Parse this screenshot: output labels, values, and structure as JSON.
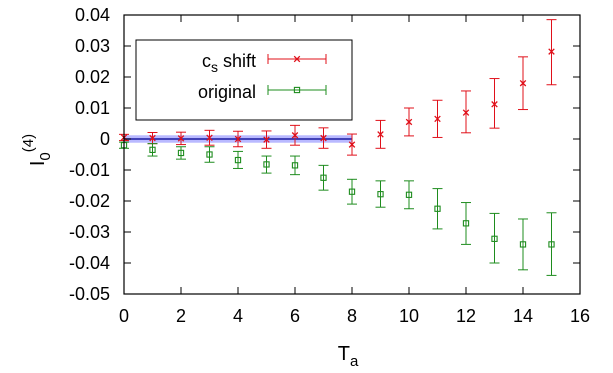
{
  "chart_data": {
    "type": "scatter",
    "xlabel": {
      "main": "T",
      "sub": "a"
    },
    "ylabel": {
      "main": "I",
      "sub": "0",
      "sup": "(4)"
    },
    "xlim": [
      0,
      16
    ],
    "ylim": [
      -0.05,
      0.04
    ],
    "xticks": [
      0,
      2,
      4,
      6,
      8,
      10,
      12,
      14,
      16
    ],
    "yticks": [
      -0.05,
      -0.04,
      -0.03,
      -0.02,
      -0.01,
      0,
      0.01,
      0.02,
      0.03,
      0.04
    ],
    "xtick_labels": [
      "0",
      "2",
      "4",
      "6",
      "8",
      "10",
      "12",
      "14",
      "16"
    ],
    "ytick_labels": [
      "-0.05",
      "-0.04",
      "-0.03",
      "-0.02",
      "-0.01",
      "0",
      "0.01",
      "0.02",
      "0.03",
      "0.04"
    ],
    "grid": false,
    "legend_position": "top-left",
    "band": {
      "x": [
        0,
        8
      ],
      "y": [
        -0.0012,
        0.0012
      ],
      "center": 0.0,
      "color": "#8080ff"
    },
    "series": [
      {
        "name": "c",
        "name_sub": "s",
        "name_suffix": " shift",
        "color": "#e0101a",
        "marker": "x",
        "points": [
          {
            "x": 0,
            "y": 0.0005,
            "lo": -0.0005,
            "hi": 0.0015
          },
          {
            "x": 1,
            "y": 0.0003,
            "lo": -0.0015,
            "hi": 0.0021
          },
          {
            "x": 2,
            "y": 0.0002,
            "lo": -0.0018,
            "hi": 0.0022
          },
          {
            "x": 3,
            "y": 0.0004,
            "lo": -0.002,
            "hi": 0.0028
          },
          {
            "x": 4,
            "y": 0.0,
            "lo": -0.0025,
            "hi": 0.0025
          },
          {
            "x": 5,
            "y": -0.0002,
            "lo": -0.003,
            "hi": 0.0026
          },
          {
            "x": 6,
            "y": 0.0012,
            "lo": -0.002,
            "hi": 0.0044
          },
          {
            "x": 7,
            "y": 0.0003,
            "lo": -0.003,
            "hi": 0.0036
          },
          {
            "x": 8,
            "y": -0.0018,
            "lo": -0.0052,
            "hi": 0.0016
          },
          {
            "x": 9,
            "y": 0.0015,
            "lo": -0.003,
            "hi": 0.006
          },
          {
            "x": 10,
            "y": 0.0055,
            "lo": 0.001,
            "hi": 0.01
          },
          {
            "x": 11,
            "y": 0.0065,
            "lo": 0.0005,
            "hi": 0.0125
          },
          {
            "x": 12,
            "y": 0.0085,
            "lo": 0.002,
            "hi": 0.0155
          },
          {
            "x": 13,
            "y": 0.0112,
            "lo": 0.0035,
            "hi": 0.0195
          },
          {
            "x": 14,
            "y": 0.018,
            "lo": 0.0095,
            "hi": 0.0265
          },
          {
            "x": 15,
            "y": 0.0282,
            "lo": 0.0175,
            "hi": 0.0385
          }
        ]
      },
      {
        "name": "original",
        "name_sub": "",
        "name_suffix": "",
        "color": "#1e8c1e",
        "marker": "square",
        "points": [
          {
            "x": 0,
            "y": -0.002,
            "lo": -0.003,
            "hi": -0.001
          },
          {
            "x": 1,
            "y": -0.0035,
            "lo": -0.0055,
            "hi": -0.0015
          },
          {
            "x": 2,
            "y": -0.0045,
            "lo": -0.0065,
            "hi": -0.0025
          },
          {
            "x": 3,
            "y": -0.005,
            "lo": -0.0075,
            "hi": -0.0025
          },
          {
            "x": 4,
            "y": -0.0068,
            "lo": -0.0095,
            "hi": -0.004
          },
          {
            "x": 5,
            "y": -0.0082,
            "lo": -0.011,
            "hi": -0.0055
          },
          {
            "x": 6,
            "y": -0.0085,
            "lo": -0.0115,
            "hi": -0.0055
          },
          {
            "x": 7,
            "y": -0.0125,
            "lo": -0.0165,
            "hi": -0.0085
          },
          {
            "x": 8,
            "y": -0.017,
            "lo": -0.021,
            "hi": -0.013
          },
          {
            "x": 9,
            "y": -0.0178,
            "lo": -0.022,
            "hi": -0.0135
          },
          {
            "x": 10,
            "y": -0.018,
            "lo": -0.0225,
            "hi": -0.0135
          },
          {
            "x": 11,
            "y": -0.0225,
            "lo": -0.029,
            "hi": -0.016
          },
          {
            "x": 12,
            "y": -0.0272,
            "lo": -0.034,
            "hi": -0.0205
          },
          {
            "x": 13,
            "y": -0.0322,
            "lo": -0.04,
            "hi": -0.024
          },
          {
            "x": 14,
            "y": -0.034,
            "lo": -0.0422,
            "hi": -0.0258
          },
          {
            "x": 15,
            "y": -0.034,
            "lo": -0.044,
            "hi": -0.0238
          }
        ]
      }
    ]
  }
}
